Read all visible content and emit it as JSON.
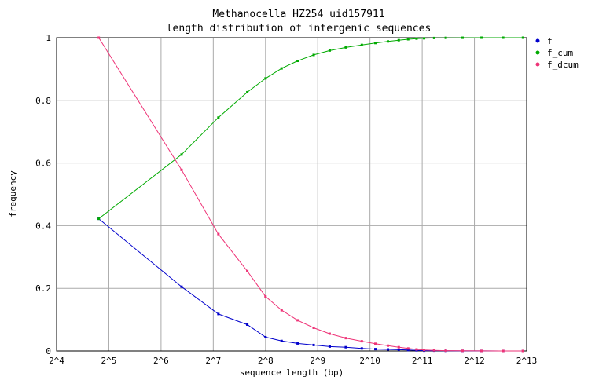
{
  "chart_data": {
    "type": "line",
    "title": "Methanocella HZ254 uid157911",
    "subtitle": "length distribution of intergenic sequences",
    "xlabel": "sequence length (bp)",
    "ylabel": "frequency",
    "x_scale": "log2",
    "xlim": [
      16,
      8192
    ],
    "ylim": [
      0,
      1
    ],
    "x_ticks": [
      "2^4",
      "2^5",
      "2^6",
      "2^7",
      "2^8",
      "2^9",
      "2^10",
      "2^11",
      "2^12",
      "2^13"
    ],
    "y_ticks": [
      "0",
      "0.2",
      "0.4",
      "0.6",
      "0.8",
      "1"
    ],
    "grid": true,
    "legend_position": "right",
    "series": [
      {
        "name": "f",
        "color": "#0000cc",
        "points": [
          [
            28,
            0.422
          ],
          [
            84,
            0.205
          ],
          [
            137,
            0.118
          ],
          [
            201,
            0.084
          ],
          [
            256,
            0.044
          ],
          [
            317,
            0.032
          ],
          [
            392,
            0.024
          ],
          [
            485,
            0.019
          ],
          [
            600,
            0.014
          ],
          [
            743,
            0.012
          ],
          [
            919,
            0.008
          ],
          [
            1100,
            0.006
          ],
          [
            1300,
            0.005
          ],
          [
            1500,
            0.004
          ],
          [
            1700,
            0.003
          ],
          [
            1900,
            0.002
          ],
          [
            2100,
            0.001
          ],
          [
            2400,
            0.001
          ],
          [
            2800,
            0.0005
          ],
          [
            3500,
            0.0003
          ],
          [
            4500,
            0.0002
          ],
          [
            6000,
            0.0001
          ],
          [
            7800,
            0.0001
          ]
        ]
      },
      {
        "name": "f_cum",
        "color": "#00aa00",
        "points": [
          [
            28,
            0.422
          ],
          [
            84,
            0.627
          ],
          [
            137,
            0.745
          ],
          [
            201,
            0.826
          ],
          [
            256,
            0.87
          ],
          [
            317,
            0.902
          ],
          [
            392,
            0.926
          ],
          [
            485,
            0.945
          ],
          [
            600,
            0.959
          ],
          [
            743,
            0.969
          ],
          [
            919,
            0.977
          ],
          [
            1100,
            0.983
          ],
          [
            1300,
            0.988
          ],
          [
            1500,
            0.992
          ],
          [
            1700,
            0.995
          ],
          [
            1900,
            0.997
          ],
          [
            2100,
            0.998
          ],
          [
            2400,
            0.999
          ],
          [
            2800,
            0.9995
          ],
          [
            3500,
            0.9998
          ],
          [
            4500,
            1
          ],
          [
            6000,
            1
          ],
          [
            7800,
            1
          ]
        ]
      },
      {
        "name": "f_dcum",
        "color": "#ee3377",
        "points": [
          [
            28,
            1
          ],
          [
            84,
            0.578
          ],
          [
            137,
            0.373
          ],
          [
            201,
            0.255
          ],
          [
            256,
            0.174
          ],
          [
            317,
            0.13
          ],
          [
            392,
            0.098
          ],
          [
            485,
            0.074
          ],
          [
            600,
            0.055
          ],
          [
            743,
            0.041
          ],
          [
            919,
            0.031
          ],
          [
            1100,
            0.023
          ],
          [
            1300,
            0.017
          ],
          [
            1500,
            0.012
          ],
          [
            1700,
            0.008
          ],
          [
            1900,
            0.005
          ],
          [
            2100,
            0.003
          ],
          [
            2400,
            0.002
          ],
          [
            2800,
            0.001
          ],
          [
            3500,
            0.0005
          ],
          [
            4500,
            0.0002
          ],
          [
            6000,
            0.0001
          ],
          [
            7800,
            0
          ]
        ]
      }
    ]
  }
}
